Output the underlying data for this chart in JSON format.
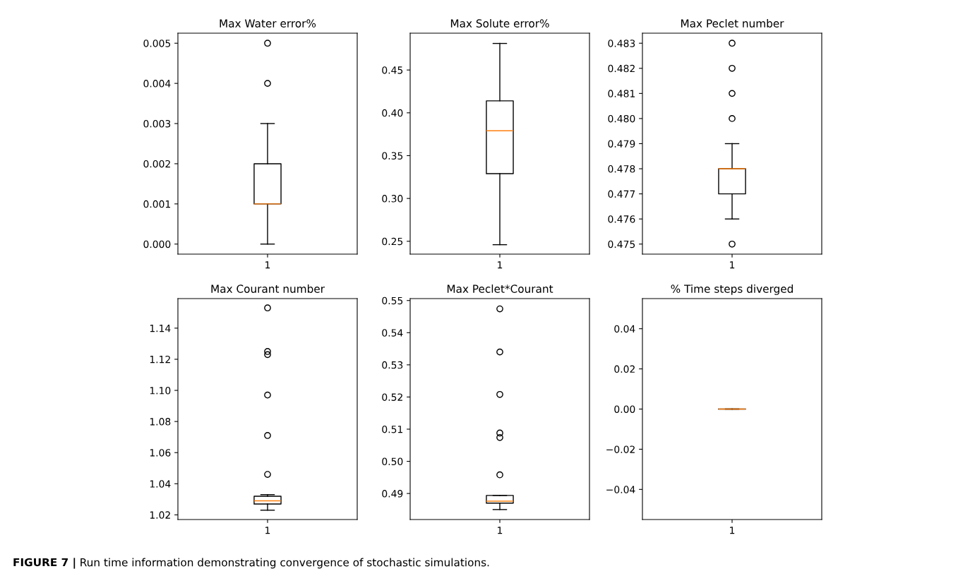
{
  "chart_data": [
    {
      "type": "box",
      "title": "Max Water error%",
      "categories": [
        "1"
      ],
      "boxes": [
        {
          "low": 0,
          "q1": 0.001,
          "median": 0.001,
          "q3": 0.002,
          "high": 0.003,
          "outliers": [
            0.004,
            0.005
          ]
        }
      ],
      "ylim": [
        -0.00025,
        0.00525
      ],
      "yticks": [
        {
          "value": 0,
          "label": "0.000"
        },
        {
          "value": 0.001,
          "label": "0.001"
        },
        {
          "value": 0.002,
          "label": "0.002"
        },
        {
          "value": 0.003,
          "label": "0.003"
        },
        {
          "value": 0.004,
          "label": "0.004"
        },
        {
          "value": 0.005,
          "label": "0.005"
        }
      ],
      "marker": "circle"
    },
    {
      "type": "box",
      "title": "Max Solute error%",
      "categories": [
        "1"
      ],
      "boxes": [
        {
          "low": 0.246,
          "q1": 0.329,
          "median": 0.379,
          "q3": 0.414,
          "high": 0.481
        }
      ],
      "ylim": [
        0.235,
        0.493
      ],
      "yticks": [
        {
          "value": 0.25,
          "label": "0.25"
        },
        {
          "value": 0.3,
          "label": "0.30"
        },
        {
          "value": 0.35,
          "label": "0.35"
        },
        {
          "value": 0.4,
          "label": "0.40"
        },
        {
          "value": 0.45,
          "label": "0.45"
        }
      ],
      "marker": "circle"
    },
    {
      "type": "box",
      "title": "Max Peclet number",
      "categories": [
        "1"
      ],
      "boxes": [
        {
          "low": 0.476,
          "q1": 0.477,
          "median": 0.478,
          "q3": 0.478,
          "high": 0.479,
          "outliers": [
            0.475,
            0.48,
            0.481,
            0.482,
            0.483
          ]
        }
      ],
      "ylim": [
        0.4746,
        0.4834
      ],
      "yticks": [
        {
          "value": 0.475,
          "label": "0.475"
        },
        {
          "value": 0.476,
          "label": "0.476"
        },
        {
          "value": 0.477,
          "label": "0.477"
        },
        {
          "value": 0.478,
          "label": "0.478"
        },
        {
          "value": 0.479,
          "label": "0.479"
        },
        {
          "value": 0.48,
          "label": "0.480"
        },
        {
          "value": 0.481,
          "label": "0.481"
        },
        {
          "value": 0.482,
          "label": "0.482"
        },
        {
          "value": 0.483,
          "label": "0.483"
        }
      ],
      "marker": "circle"
    },
    {
      "type": "box",
      "title": "Max Courant number",
      "categories": [
        "1"
      ],
      "boxes": [
        {
          "low": 1.023,
          "q1": 1.027,
          "median": 1.029,
          "q3": 1.032,
          "high": 1.033,
          "outliers": [
            1.046,
            1.071,
            1.097,
            1.123,
            1.125,
            1.153
          ]
        }
      ],
      "ylim": [
        1.017,
        1.159
      ],
      "yticks": [
        {
          "value": 1.02,
          "label": "1.02"
        },
        {
          "value": 1.04,
          "label": "1.04"
        },
        {
          "value": 1.06,
          "label": "1.06"
        },
        {
          "value": 1.08,
          "label": "1.08"
        },
        {
          "value": 1.1,
          "label": "1.10"
        },
        {
          "value": 1.12,
          "label": "1.12"
        },
        {
          "value": 1.14,
          "label": "1.14"
        }
      ],
      "marker": "circle"
    },
    {
      "type": "box",
      "title": "Max Peclet*Courant",
      "categories": [
        "1"
      ],
      "boxes": [
        {
          "low": 0.485,
          "q1": 0.487,
          "median": 0.4876,
          "q3": 0.4894,
          "high": 0.4894,
          "outliers": [
            0.4958,
            0.5074,
            0.5088,
            0.5208,
            0.534,
            0.5474
          ]
        }
      ],
      "ylim": [
        0.4819,
        0.5506
      ],
      "yticks": [
        {
          "value": 0.49,
          "label": "0.49"
        },
        {
          "value": 0.5,
          "label": "0.50"
        },
        {
          "value": 0.51,
          "label": "0.51"
        },
        {
          "value": 0.52,
          "label": "0.52"
        },
        {
          "value": 0.53,
          "label": "0.53"
        },
        {
          "value": 0.54,
          "label": "0.54"
        },
        {
          "value": 0.55,
          "label": "0.55"
        }
      ],
      "marker": "circle"
    },
    {
      "type": "box",
      "title": "% Time steps diverged",
      "categories": [
        "1"
      ],
      "boxes": [
        {
          "low": 0,
          "q1": 0,
          "median": 0,
          "q3": 0,
          "high": 0
        }
      ],
      "ylim": [
        -0.055,
        0.055
      ],
      "yticks": [
        {
          "value": -0.04,
          "label": "−0.04"
        },
        {
          "value": -0.02,
          "label": "−0.02"
        },
        {
          "value": 0,
          "label": "0.00"
        },
        {
          "value": 0.02,
          "label": "0.02"
        },
        {
          "value": 0.04,
          "label": "0.04"
        }
      ],
      "marker": "circle",
      "annotations": [
        "FIGURE 7 |",
        "Run time information demonstrating convergence of stochastic simulations."
      ]
    }
  ]
}
